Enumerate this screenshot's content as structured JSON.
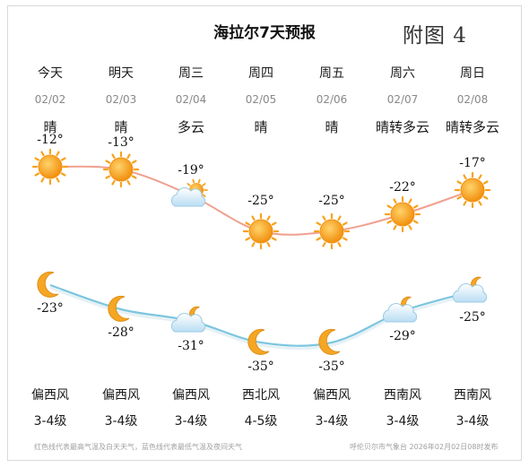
{
  "header": {
    "title": "海拉尔7天预报",
    "figure_label": "附图 4"
  },
  "days": [
    {
      "day": "今天",
      "date": "02/02",
      "weather": "晴",
      "high": "-12°",
      "low": "-23°",
      "day_icon": "sun-icon",
      "night_icon": "moon-icon",
      "wind_dir": "偏西风",
      "wind_level": "3-4级"
    },
    {
      "day": "明天",
      "date": "02/03",
      "weather": "晴",
      "high": "-13°",
      "low": "-28°",
      "day_icon": "sun-icon",
      "night_icon": "moon-icon",
      "wind_dir": "偏西风",
      "wind_level": "3-4级"
    },
    {
      "day": "周三",
      "date": "02/04",
      "weather": "多云",
      "high": "-19°",
      "low": "-31°",
      "day_icon": "partly-cloudy-day-icon",
      "night_icon": "partly-cloudy-night-icon",
      "wind_dir": "偏西风",
      "wind_level": "3-4级"
    },
    {
      "day": "周四",
      "date": "02/05",
      "weather": "晴",
      "high": "-25°",
      "low": "-35°",
      "day_icon": "sun-icon",
      "night_icon": "moon-icon",
      "wind_dir": "西北风",
      "wind_level": "4-5级"
    },
    {
      "day": "周五",
      "date": "02/06",
      "weather": "晴",
      "high": "-25°",
      "low": "-35°",
      "day_icon": "sun-icon",
      "night_icon": "moon-icon",
      "wind_dir": "偏西风",
      "wind_level": "3-4级"
    },
    {
      "day": "周六",
      "date": "02/07",
      "weather": "晴转多云",
      "high": "-22°",
      "low": "-29°",
      "day_icon": "sun-icon",
      "night_icon": "partly-cloudy-night-icon",
      "wind_dir": "西南风",
      "wind_level": "3-4级"
    },
    {
      "day": "周日",
      "date": "02/08",
      "weather": "晴转多云",
      "high": "-17°",
      "low": "-25°",
      "day_icon": "sun-icon",
      "night_icon": "partly-cloudy-night-icon",
      "wind_dir": "西南风",
      "wind_level": "3-4级"
    }
  ],
  "temps": {
    "high": [
      -12,
      -13,
      -19,
      -25,
      -25,
      -22,
      -17
    ],
    "low": [
      -23,
      -28,
      -31,
      -35,
      -35,
      -29,
      -25
    ]
  },
  "colors": {
    "high_line": "#f0a090",
    "low_line": "#7cc6de",
    "sun": "#f7a21a",
    "moon": "#f5a623",
    "cloud": "#c9e6f7"
  },
  "footer": {
    "legend": "红色线代表最高气温及白天天气，蓝色线代表最低气温及夜间天气",
    "source": "呼伦贝尔市气象台 2026年02月02日08时发布"
  }
}
